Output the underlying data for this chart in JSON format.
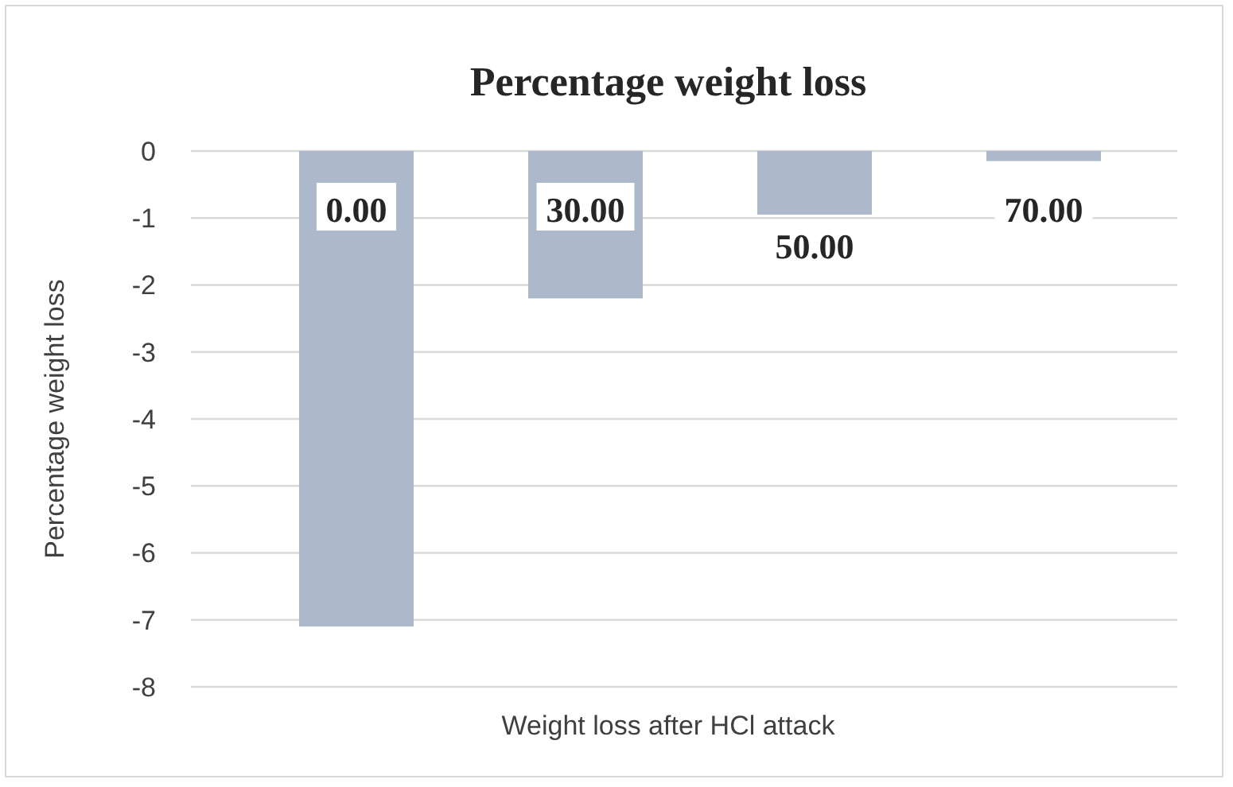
{
  "chart_data": {
    "type": "bar",
    "title": "Percentage weight loss",
    "xlabel": "Weight loss after HCl attack",
    "ylabel": "Percentage weight loss",
    "categories": [
      null
    ],
    "series": [
      {
        "name": "0.00",
        "color": "#adb9ca",
        "values": [
          -7.1
        ]
      },
      {
        "name": "30.00",
        "color": "#adb9ca",
        "values": [
          -2.2
        ]
      },
      {
        "name": "50.00",
        "color": "#adb9ca",
        "values": [
          -0.95
        ]
      },
      {
        "name": "70.00",
        "color": "#adb9ca",
        "values": [
          -0.15
        ]
      }
    ],
    "ylim": [
      -8,
      0
    ],
    "yticks": [
      -8,
      -7,
      -6,
      -5,
      -4,
      -3,
      -2,
      -1,
      0
    ],
    "grid": "y"
  }
}
